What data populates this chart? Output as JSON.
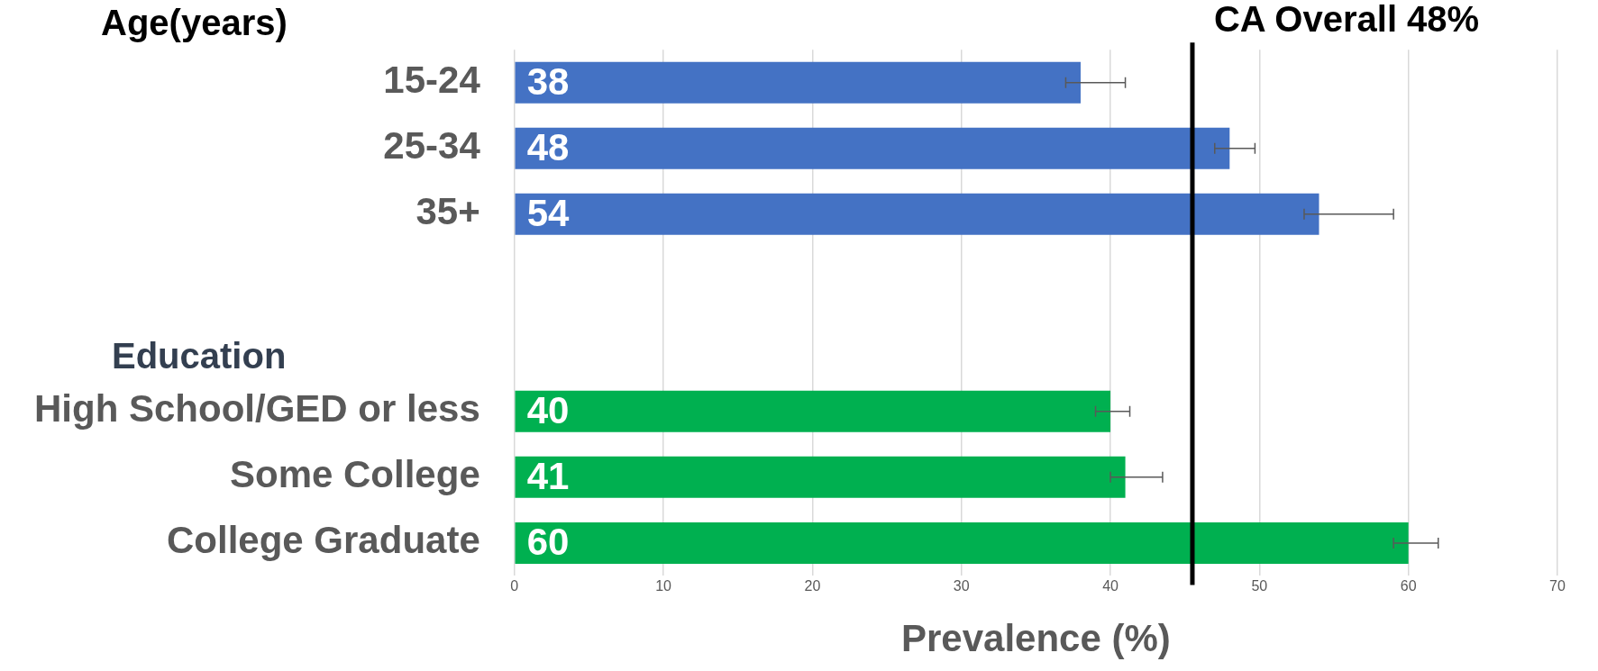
{
  "chart_data": {
    "type": "bar",
    "orientation": "horizontal",
    "categories": [
      "15-24",
      "25-34",
      "35+",
      null,
      null,
      "High School/GED or less",
      "Some College",
      "College Graduate"
    ],
    "values": [
      38,
      48,
      54,
      null,
      null,
      40,
      41,
      60
    ],
    "colors": [
      "#4472c4",
      "#4472c4",
      "#4472c4",
      null,
      null,
      "#00b050",
      "#00b050",
      "#00b050"
    ],
    "errors": [
      [
        37,
        41
      ],
      [
        47,
        49.7
      ],
      [
        53,
        59
      ],
      null,
      null,
      [
        39,
        41.3
      ],
      [
        40,
        43.5
      ],
      [
        59,
        62
      ]
    ],
    "data_labels": true,
    "xlabel": "Prevalence (%)",
    "xlim": [
      0,
      70
    ],
    "xticks": [
      0,
      10,
      20,
      30,
      40,
      50,
      60,
      70
    ],
    "grid": "x",
    "ref_lines": [
      {
        "axis": "x",
        "value": 45.5,
        "label": "CA Overall 48%",
        "color": "#000000"
      }
    ],
    "annotations": [
      "Age(years)",
      "Education"
    ],
    "legend": false
  }
}
